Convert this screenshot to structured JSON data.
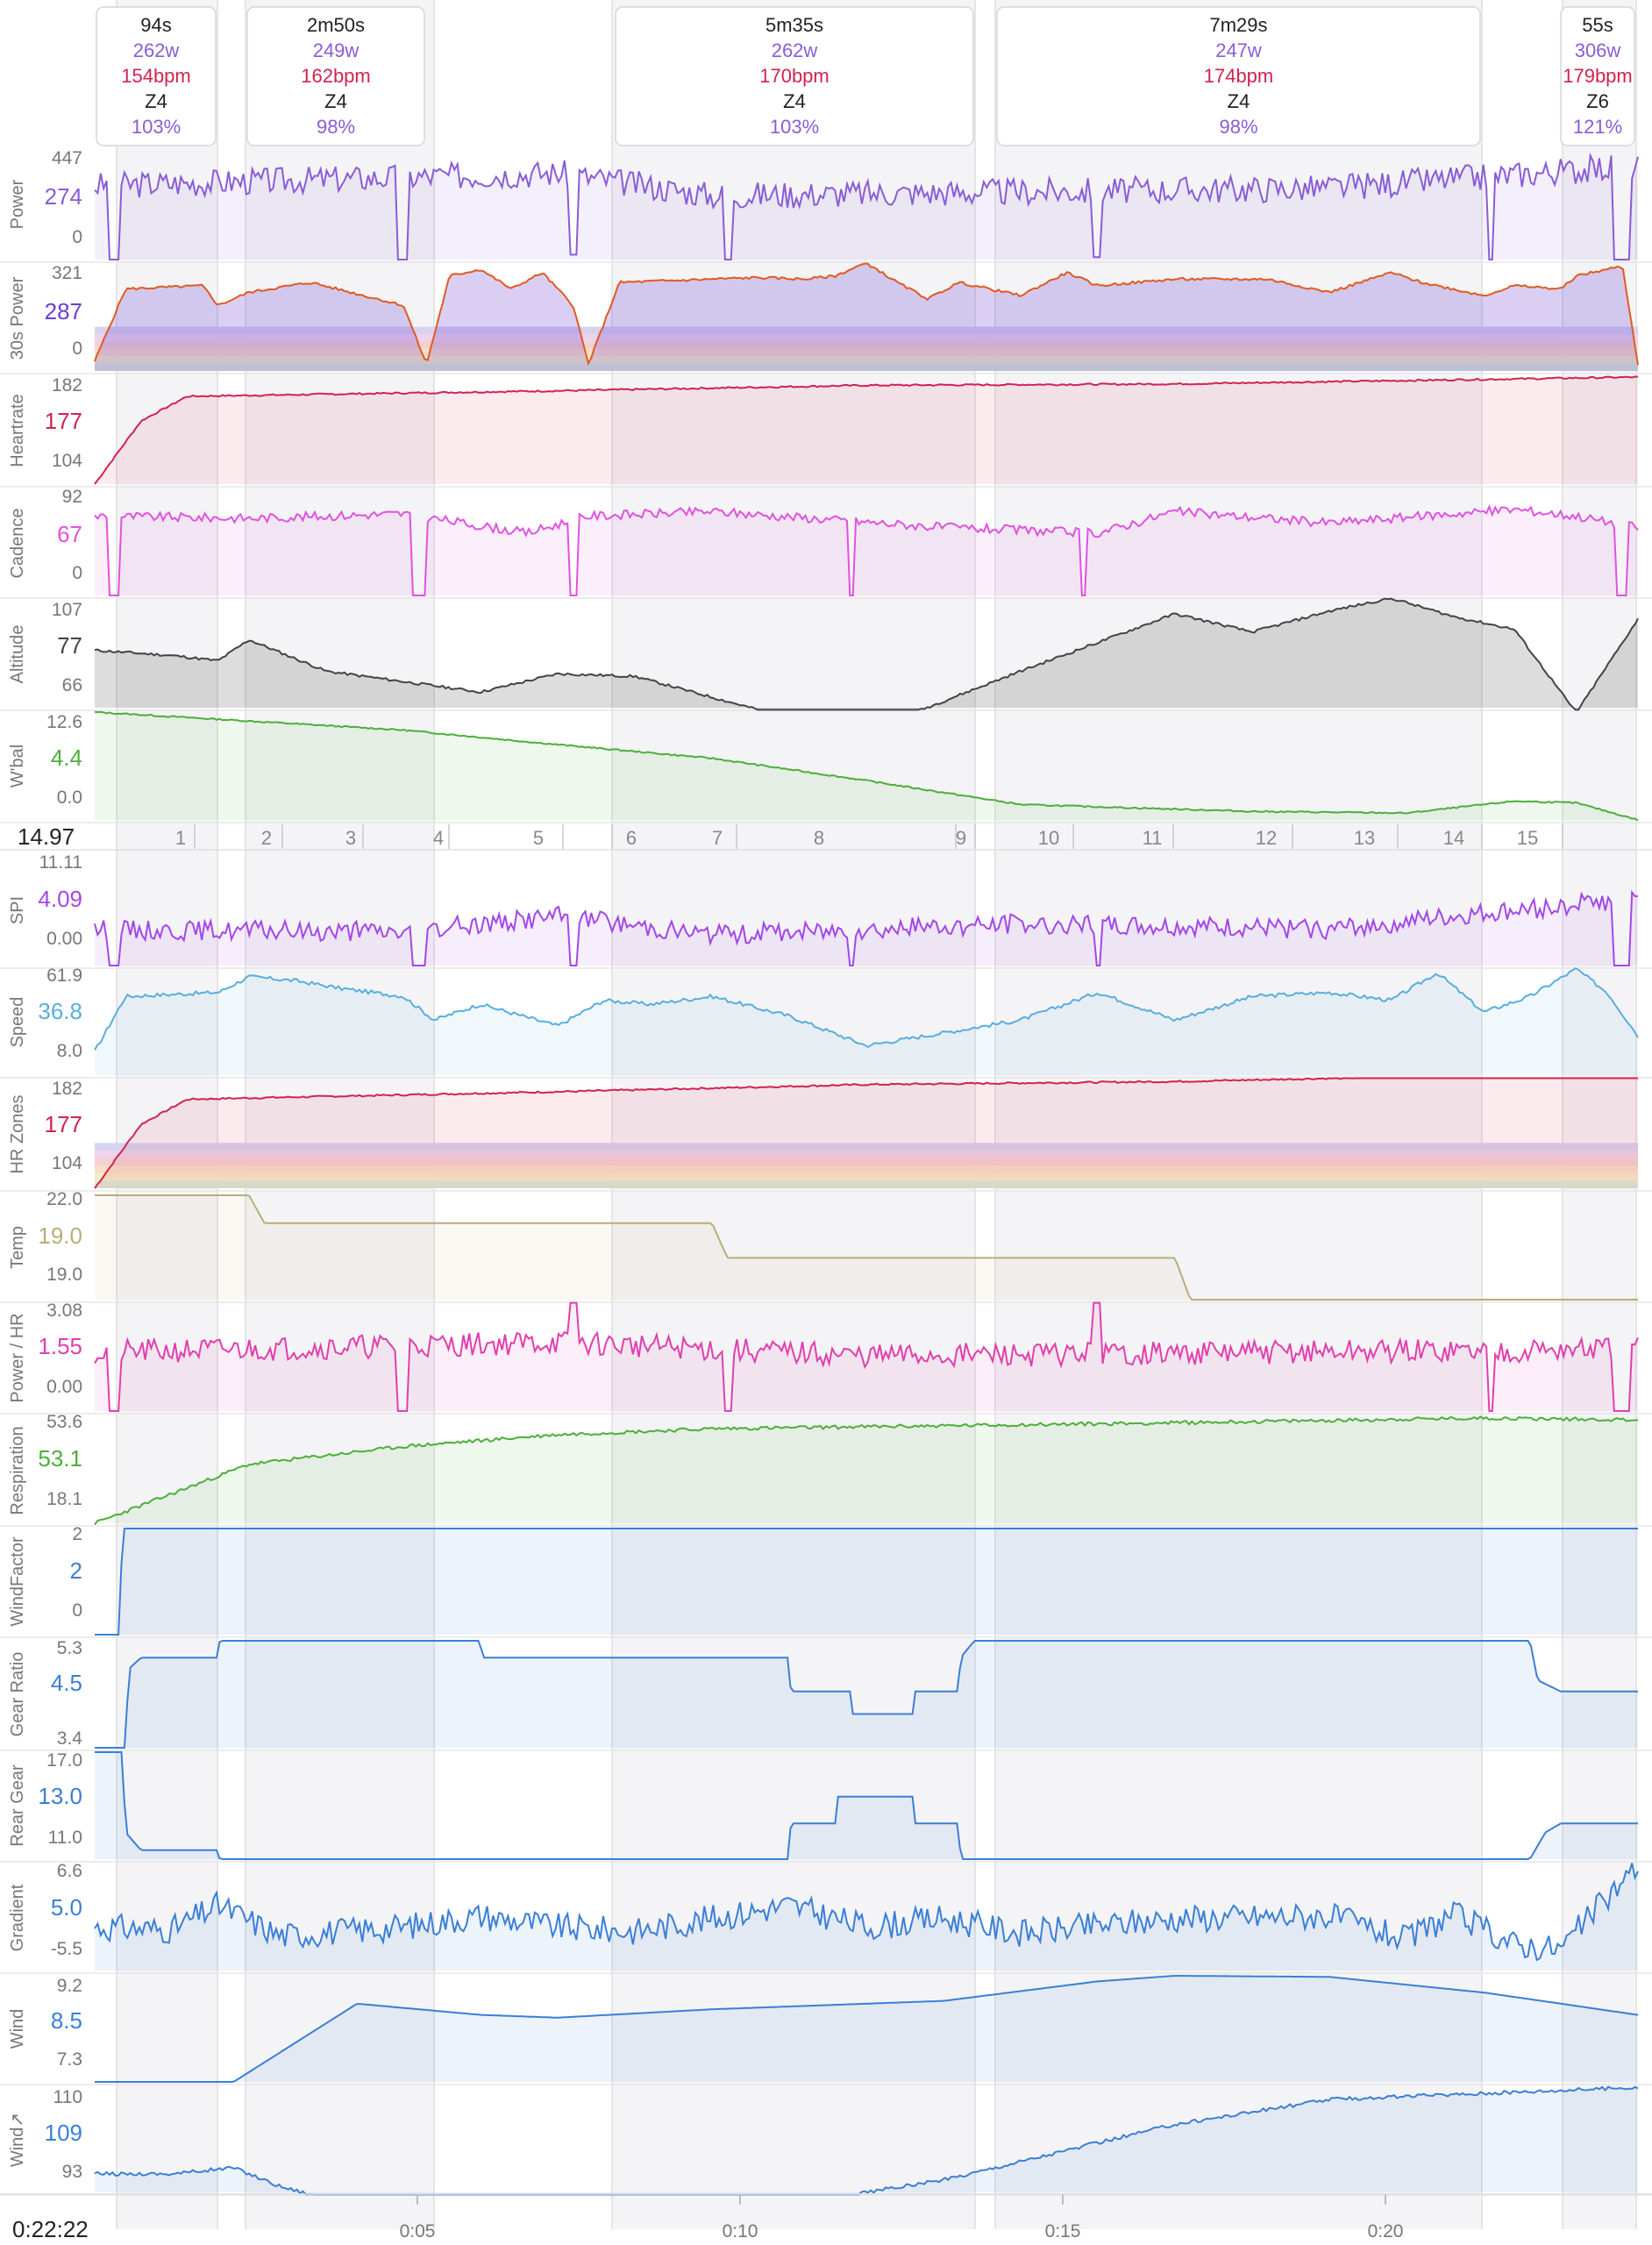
{
  "time_readout": "0:22:22",
  "lap_metric": "14.97",
  "lap_labels": [
    "1",
    "2",
    "3",
    "4",
    "5",
    "6",
    "7",
    "8",
    "9",
    "10",
    "11",
    "12",
    "13",
    "14",
    "15"
  ],
  "x_ticks": [
    "0:05",
    "0:10",
    "0:15",
    "0:20"
  ],
  "intervals": [
    {
      "duration": "94s",
      "power": "262w",
      "hr": "154bpm",
      "zone": "Z4",
      "pct": "103%"
    },
    {
      "duration": "2m50s",
      "power": "249w",
      "hr": "162bpm",
      "zone": "Z4",
      "pct": "98%"
    },
    {
      "duration": "5m35s",
      "power": "262w",
      "hr": "170bpm",
      "zone": "Z4",
      "pct": "103%"
    },
    {
      "duration": "7m29s",
      "power": "247w",
      "hr": "174bpm",
      "zone": "Z4",
      "pct": "98%"
    },
    {
      "duration": "55s",
      "power": "306w",
      "hr": "179bpm",
      "zone": "Z6",
      "pct": "121%"
    }
  ],
  "colors": {
    "power": "#8a5cd6",
    "hr": "#d0244f",
    "cadence": "#e052e0",
    "altitude": "#999999",
    "wbal": "#4caf3a",
    "spi": "#a347e8",
    "speed": "#5aaedc",
    "temp": "#b8ad7a",
    "pwhr": "#e03fae",
    "resp": "#4caf3a",
    "blue": "#3a7fd6"
  },
  "chart_data": [
    {
      "type": "line",
      "title": "Power",
      "yticks": [
        "447",
        "274",
        "0"
      ],
      "current": "274",
      "ylim": [
        0,
        447
      ]
    },
    {
      "type": "area",
      "title": "30s Power",
      "yticks": [
        "321",
        "287",
        "0"
      ],
      "current": "287",
      "ylim": [
        0,
        321
      ]
    },
    {
      "type": "line",
      "title": "Heartrate",
      "yticks": [
        "182",
        "177",
        "104"
      ],
      "current": "177",
      "ylim": [
        104,
        182
      ]
    },
    {
      "type": "line",
      "title": "Cadence",
      "yticks": [
        "92",
        "67",
        "0"
      ],
      "current": "67",
      "ylim": [
        0,
        92
      ]
    },
    {
      "type": "area",
      "title": "Altitude",
      "yticks": [
        "107",
        "77",
        "66"
      ],
      "current": "77",
      "ylim": [
        66,
        107
      ]
    },
    {
      "type": "line",
      "title": "W'bal",
      "yticks": [
        "12.6",
        "4.4",
        "0.0"
      ],
      "current": "4.4",
      "ylim": [
        0,
        12.6
      ]
    },
    {
      "type": "line",
      "title": "SPI",
      "yticks": [
        "11.11",
        "4.09",
        "0.00"
      ],
      "current": "4.09",
      "ylim": [
        0,
        11.11
      ]
    },
    {
      "type": "line",
      "title": "Speed",
      "yticks": [
        "61.9",
        "36.8",
        "8.0"
      ],
      "current": "36.8",
      "ylim": [
        8,
        61.9
      ]
    },
    {
      "type": "area",
      "title": "HR Zones",
      "yticks": [
        "182",
        "177",
        "104"
      ],
      "current": "177",
      "ylim": [
        104,
        182
      ]
    },
    {
      "type": "line",
      "title": "Temp",
      "yticks": [
        "22.0",
        "19.0",
        "19.0"
      ],
      "current": "19.0",
      "ylim": [
        19,
        22
      ]
    },
    {
      "type": "line",
      "title": "Power / HR",
      "yticks": [
        "3.08",
        "1.55",
        "0.00"
      ],
      "current": "1.55",
      "ylim": [
        0,
        3.08
      ]
    },
    {
      "type": "line",
      "title": "Respiration",
      "yticks": [
        "53.6",
        "53.1",
        "18.1"
      ],
      "current": "53.1",
      "ylim": [
        18.1,
        53.6
      ]
    },
    {
      "type": "line",
      "title": "WindFactor",
      "yticks": [
        "2",
        "2",
        "0"
      ],
      "current": "2",
      "ylim": [
        0,
        2
      ]
    },
    {
      "type": "line",
      "title": "Gear Ratio",
      "yticks": [
        "5.3",
        "4.5",
        "3.4"
      ],
      "current": "4.5",
      "ylim": [
        3.4,
        5.3
      ]
    },
    {
      "type": "line",
      "title": "Rear Gear",
      "yticks": [
        "17.0",
        "13.0",
        "11.0"
      ],
      "current": "13.0",
      "ylim": [
        11,
        17
      ]
    },
    {
      "type": "line",
      "title": "Gradient",
      "yticks": [
        "6.6",
        "5.0",
        "-5.5"
      ],
      "current": "5.0",
      "ylim": [
        -5.5,
        6.6
      ]
    },
    {
      "type": "line",
      "title": "Wind",
      "yticks": [
        "9.2",
        "8.5",
        "7.3"
      ],
      "current": "8.5",
      "ylim": [
        7.3,
        9.2
      ]
    },
    {
      "type": "line",
      "title": "Wind↗",
      "yticks": [
        "110",
        "109",
        "93"
      ],
      "current": "109",
      "ylim": [
        93,
        110
      ]
    }
  ]
}
